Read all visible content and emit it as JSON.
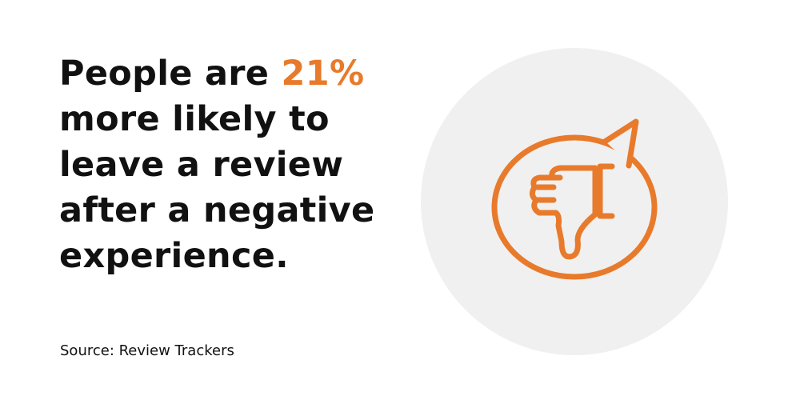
{
  "headline": {
    "lead": "People are",
    "highlight": "21%",
    "rest": [
      "more likely to",
      "leave a review",
      "after a negative",
      "experience."
    ]
  },
  "source": "Source: Review Trackers"
}
